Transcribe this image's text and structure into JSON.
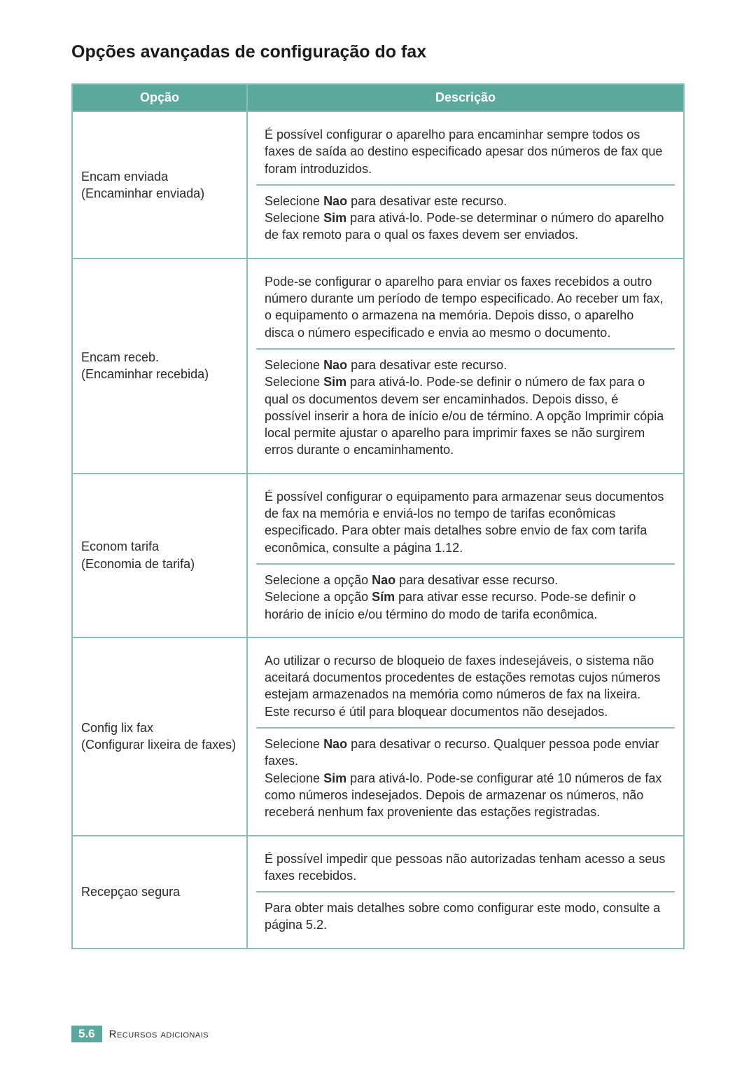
{
  "title": "Opções avançadas de configuração do fax",
  "table": {
    "header": {
      "opcao": "Opção",
      "descricao": "Descrição"
    },
    "rows": [
      {
        "name": "Encam enviada\n(Encaminhar enviada)",
        "b1": "É possível configurar o aparelho para encaminhar sempre todos os faxes de saída ao destino especificado apesar dos números de fax que foram introduzidos.",
        "b2_pre": "Selecione ",
        "b2_nao": "Nao",
        "b2_mid": " para desativar este recurso.\nSelecione ",
        "b2_sim": "Sim",
        "b2_post": " para ativá-lo. Pode-se determinar o número do aparelho de fax remoto para o qual os faxes devem ser enviados."
      },
      {
        "name": "Encam receb.\n(Encaminhar recebida)",
        "b1": "Pode-se configurar o aparelho para enviar os faxes recebidos a outro número durante um período de tempo especificado. Ao receber um fax, o equipamento o armazena na memória. Depois disso, o aparelho disca o número especificado e envia ao mesmo o documento.",
        "b2_pre": "Selecione ",
        "b2_nao": "Nao",
        "b2_mid": " para desativar este recurso.\nSelecione ",
        "b2_sim": "Sim",
        "b2_post": " para ativá-lo. Pode-se definir o número de fax para o qual os documentos devem ser encaminhados. Depois disso, é possível inserir a hora de início e/ou de término. A opção Imprimir cópia local permite ajustar o aparelho para imprimir faxes se não surgirem erros durante o encaminhamento."
      },
      {
        "name": "Econom tarifa\n(Economia de tarifa)",
        "b1": "É possível configurar o equipamento para armazenar seus documentos de fax na memória e enviá-los no tempo de tarifas econômicas especificado. Para obter mais detalhes sobre envio de fax com tarifa econômica, consulte a página 1.12.",
        "b2_pre": "Selecione a opção ",
        "b2_nao": "Nao",
        "b2_mid": " para desativar esse recurso.\nSelecione a opção ",
        "b2_sim": "Sím",
        "b2_post": " para ativar esse recurso. Pode-se definir o horário de início e/ou término do modo de tarifa econômica."
      },
      {
        "name": "Config lix fax\n(Configurar lixeira de faxes)",
        "b1": "Ao utilizar o recurso de bloqueio de faxes indesejáveis, o sistema não aceitará documentos procedentes de estações remotas cujos números estejam armazenados na memória como números de fax na lixeira. Este recurso é útil para bloquear documentos não desejados.",
        "b2_pre": "Selecione ",
        "b2_nao": "Nao",
        "b2_mid": " para desativar o recurso. Qualquer pessoa pode enviar faxes.\nSelecione ",
        "b2_sim": "Sim",
        "b2_post": " para ativá-lo. Pode-se configurar até 10 números de fax como números indesejados. Depois de armazenar os números, não receberá nenhum fax proveniente das estações registradas."
      },
      {
        "name": "Recepçao segura",
        "b1": "É possível impedir que pessoas não autorizadas tenham acesso a seus faxes recebidos.",
        "b2_plain": "Para obter mais detalhes sobre como configurar este modo, consulte a página 5.2."
      }
    ]
  },
  "footer": {
    "page": "5.6",
    "section": "Recursos adicionais"
  },
  "colors": {
    "header_bg": "#5ba89d",
    "border": "#8cbcb6",
    "text": "#2a2a2a",
    "header_text": "#ffffff"
  }
}
